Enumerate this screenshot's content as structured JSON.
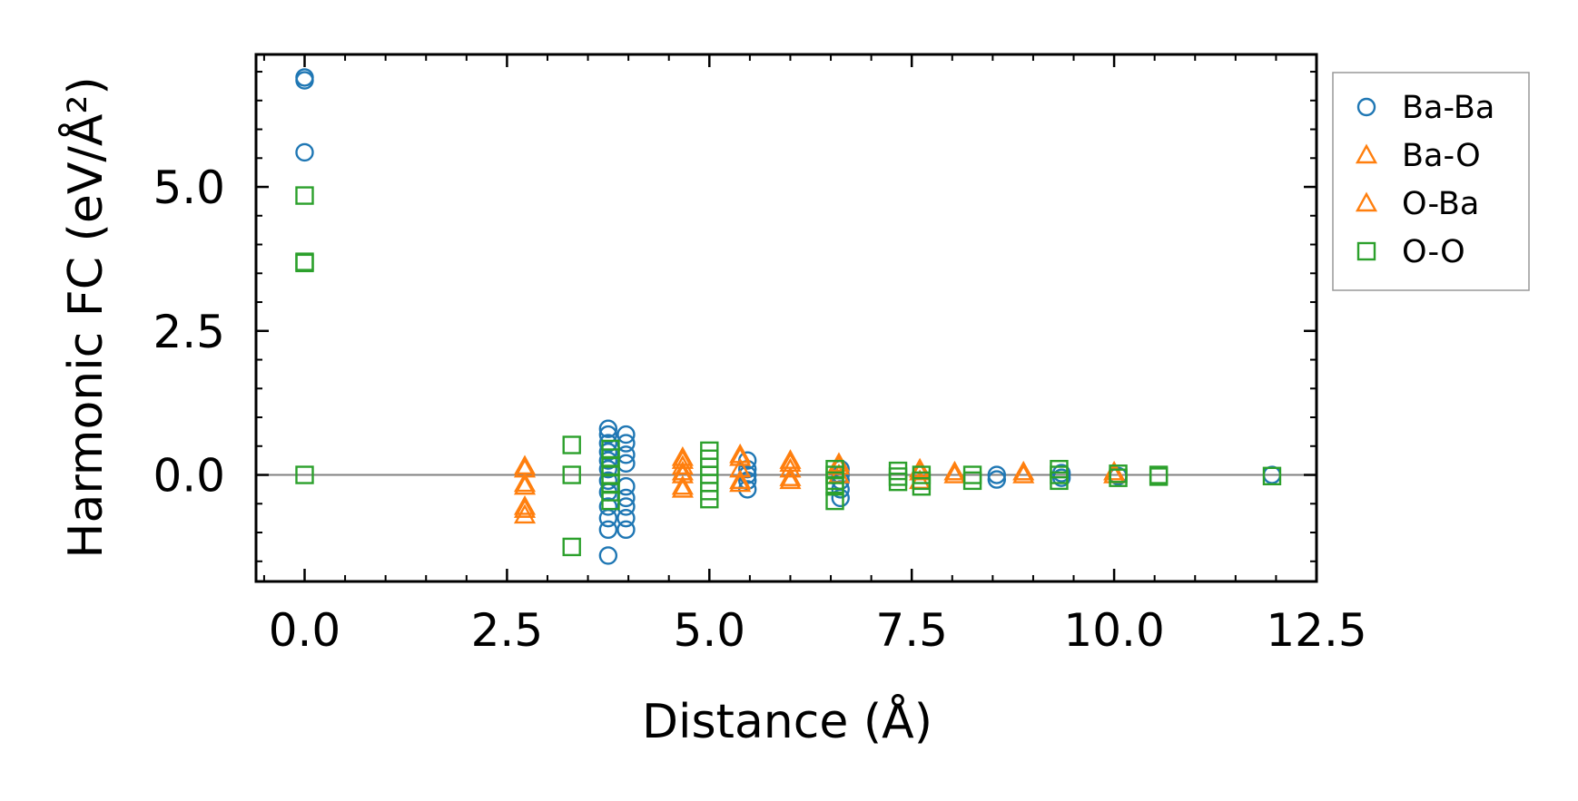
{
  "chart_data": {
    "type": "scatter",
    "xlabel": "Distance (Å)",
    "ylabel": "Harmonic FC (eV/Å²)",
    "xlim": [
      -0.6,
      12.5
    ],
    "ylim": [
      -1.85,
      7.3
    ],
    "xticks": [
      0.0,
      2.5,
      5.0,
      7.5,
      10.0,
      12.5
    ],
    "xtick_labels": [
      "0.0",
      "2.5",
      "5.0",
      "7.5",
      "10.0",
      "12.5"
    ],
    "yticks": [
      0.0,
      2.5,
      5.0
    ],
    "ytick_labels": [
      "0.0",
      "2.5",
      "5.0"
    ],
    "minor_ticks": true,
    "zero_line": true,
    "grid": false,
    "legend_position": "outside-right",
    "series": [
      {
        "name": "Ba-Ba",
        "marker": "circle",
        "color": "#1f77b4",
        "points": [
          [
            0.0,
            6.9
          ],
          [
            0.0,
            6.85
          ],
          [
            0.0,
            5.6
          ],
          [
            3.75,
            0.8
          ],
          [
            3.75,
            0.7
          ],
          [
            3.75,
            0.55
          ],
          [
            3.75,
            0.4
          ],
          [
            3.75,
            0.25
          ],
          [
            3.75,
            0.1
          ],
          [
            3.75,
            -0.1
          ],
          [
            3.75,
            -0.3
          ],
          [
            3.75,
            -0.55
          ],
          [
            3.75,
            -0.75
          ],
          [
            3.75,
            -0.95
          ],
          [
            3.75,
            -1.4
          ],
          [
            3.97,
            0.7
          ],
          [
            3.97,
            0.55
          ],
          [
            3.97,
            0.35
          ],
          [
            3.97,
            0.2
          ],
          [
            3.97,
            -0.2
          ],
          [
            3.97,
            -0.4
          ],
          [
            3.97,
            -0.55
          ],
          [
            3.97,
            -0.75
          ],
          [
            3.97,
            -0.95
          ],
          [
            5.47,
            0.25
          ],
          [
            5.47,
            0.1
          ],
          [
            5.47,
            0.0
          ],
          [
            5.47,
            -0.1
          ],
          [
            5.47,
            -0.25
          ],
          [
            6.62,
            0.1
          ],
          [
            6.62,
            0.0
          ],
          [
            6.62,
            -0.1
          ],
          [
            6.62,
            -0.25
          ],
          [
            6.62,
            -0.4
          ],
          [
            8.55,
            0.0
          ],
          [
            8.55,
            -0.08
          ],
          [
            9.35,
            0.03
          ],
          [
            9.35,
            -0.05
          ],
          [
            10.05,
            -0.02
          ],
          [
            11.95,
            0.0
          ]
        ]
      },
      {
        "name": "Ba-O",
        "marker": "triangle",
        "color": "#ff7f0e",
        "points": [
          [
            2.72,
            0.15
          ],
          [
            2.72,
            -0.15
          ],
          [
            2.72,
            -0.55
          ],
          [
            2.72,
            -0.7
          ],
          [
            4.67,
            0.3
          ],
          [
            4.67,
            0.15
          ],
          [
            4.67,
            0.0
          ],
          [
            4.67,
            -0.2
          ],
          [
            5.38,
            0.35
          ],
          [
            5.38,
            0.1
          ],
          [
            5.38,
            -0.15
          ],
          [
            6.0,
            0.25
          ],
          [
            6.0,
            0.1
          ],
          [
            6.0,
            -0.1
          ],
          [
            6.6,
            0.2
          ],
          [
            6.6,
            0.0
          ],
          [
            7.6,
            0.1
          ],
          [
            7.6,
            -0.1
          ],
          [
            8.03,
            0.05
          ],
          [
            8.88,
            0.05
          ],
          [
            10.0,
            0.05
          ]
        ]
      },
      {
        "name": "O-Ba",
        "marker": "triangle",
        "color": "#ff7f0e",
        "points": [
          [
            2.72,
            0.1
          ],
          [
            2.72,
            -0.2
          ],
          [
            2.72,
            -0.6
          ],
          [
            4.67,
            0.25
          ],
          [
            4.67,
            0.05
          ],
          [
            4.67,
            -0.25
          ],
          [
            5.38,
            0.3
          ],
          [
            5.38,
            -0.1
          ],
          [
            6.0,
            0.2
          ],
          [
            6.0,
            -0.05
          ],
          [
            6.6,
            0.15
          ],
          [
            7.6,
            0.05
          ],
          [
            8.03,
            0.0
          ],
          [
            8.88,
            0.0
          ],
          [
            10.0,
            0.0
          ]
        ]
      },
      {
        "name": "O-O",
        "marker": "square",
        "color": "#2ca02c",
        "points": [
          [
            0.0,
            4.85
          ],
          [
            0.0,
            3.7
          ],
          [
            0.0,
            3.68
          ],
          [
            0.0,
            0.0
          ],
          [
            3.3,
            0.52
          ],
          [
            3.3,
            0.0
          ],
          [
            3.3,
            -1.25
          ],
          [
            3.78,
            0.45
          ],
          [
            3.78,
            0.3
          ],
          [
            3.78,
            0.15
          ],
          [
            3.78,
            0.0
          ],
          [
            3.78,
            -0.15
          ],
          [
            3.78,
            -0.3
          ],
          [
            3.78,
            -0.45
          ],
          [
            5.0,
            0.42
          ],
          [
            5.0,
            0.28
          ],
          [
            5.0,
            0.14
          ],
          [
            5.0,
            0.0
          ],
          [
            5.0,
            -0.14
          ],
          [
            5.0,
            -0.28
          ],
          [
            5.0,
            -0.42
          ],
          [
            6.55,
            0.1
          ],
          [
            6.55,
            0.0
          ],
          [
            6.55,
            -0.1
          ],
          [
            6.55,
            -0.2
          ],
          [
            6.55,
            -0.45
          ],
          [
            7.33,
            0.07
          ],
          [
            7.33,
            -0.03
          ],
          [
            7.33,
            -0.12
          ],
          [
            7.62,
            0.0
          ],
          [
            7.62,
            -0.1
          ],
          [
            7.62,
            -0.2
          ],
          [
            8.25,
            0.0
          ],
          [
            8.25,
            -0.1
          ],
          [
            9.32,
            0.1
          ],
          [
            9.32,
            0.0
          ],
          [
            9.32,
            -0.1
          ],
          [
            10.05,
            0.02
          ],
          [
            10.05,
            -0.05
          ],
          [
            10.55,
            0.0
          ],
          [
            10.55,
            -0.03
          ],
          [
            11.95,
            -0.02
          ]
        ]
      }
    ]
  }
}
